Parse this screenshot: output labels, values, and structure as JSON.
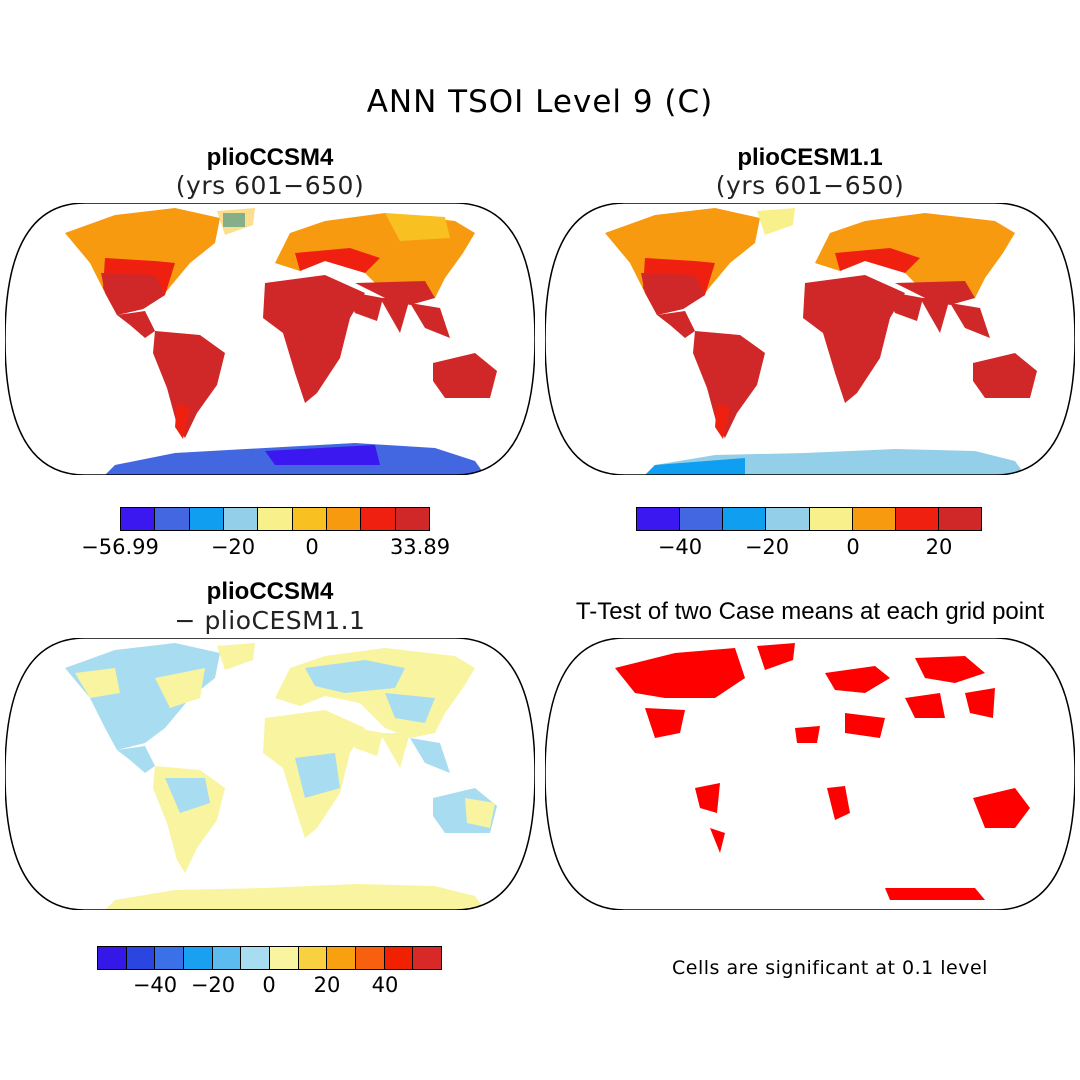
{
  "figure_title": "ANN TSOI Level 9 (C)",
  "panels": [
    {
      "title": "plioCCSM4",
      "subtitle": "(yrs 601−650)"
    },
    {
      "title": "plioCESM1.1",
      "subtitle": "(yrs 601−650)"
    },
    {
      "title": "plioCCSM4",
      "subtitle": "− plioCESM1.1"
    },
    {
      "title": "T-Test of two Case means at each grid point",
      "subtitle": ""
    }
  ],
  "colorbars": [
    {
      "colors": [
        "#3b18f0",
        "#4267e0",
        "#109ef0",
        "#94cfea",
        "#f8f08a",
        "#f8c020",
        "#f89a10",
        "#f02010",
        "#d02828"
      ],
      "labels": [
        "−56.99",
        "−20",
        "0",
        "33.89"
      ]
    },
    {
      "colors": [
        "#3b18f0",
        "#4267e0",
        "#109ef0",
        "#94cfea",
        "#f8f08a",
        "#f89a10",
        "#f02010",
        "#d02828"
      ],
      "labels": [
        "−40",
        "−20",
        "0",
        "20"
      ]
    },
    {
      "colors": [
        "#3318e8",
        "#2a45e0",
        "#3a70e8",
        "#1aa0f0",
        "#5cbcf0",
        "#a8dcf0",
        "#f8f4a0",
        "#f8d040",
        "#f8a010",
        "#f86010",
        "#f02000",
        "#d82828"
      ],
      "labels": [
        "−40",
        "−20",
        "0",
        "20",
        "40"
      ]
    }
  ],
  "footnote": "Cells are significant at 0.1 level",
  "colors": {
    "background": "#ffffff",
    "outline": "#000000",
    "significant": "#ff0000"
  }
}
